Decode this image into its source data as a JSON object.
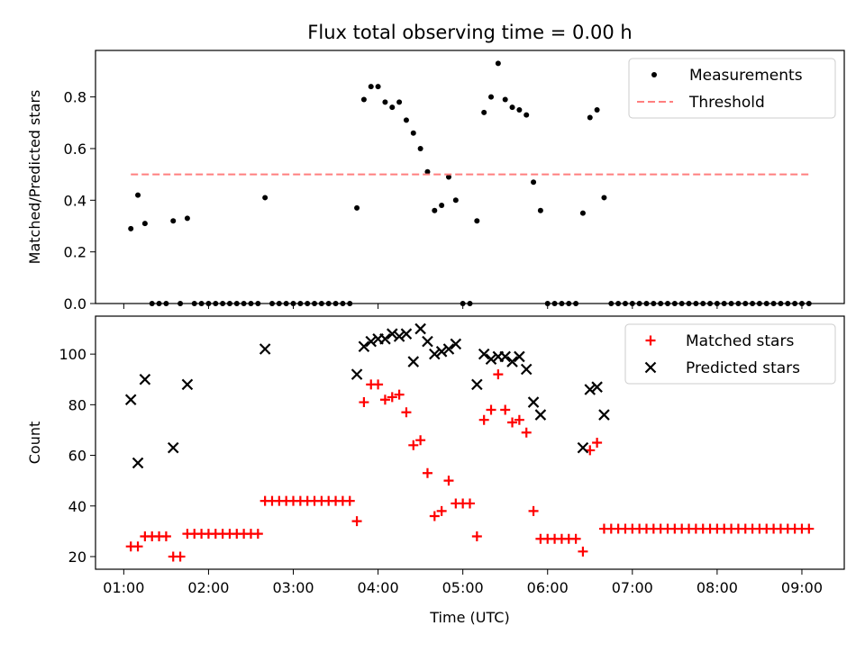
{
  "chart_data": [
    {
      "type": "scatter",
      "title": "Flux total observing time = 0.00 h",
      "xlabel": "",
      "ylabel": "Matched/Predicted stars",
      "x_is_time_hours": true,
      "xlim": [
        "00:40",
        "09:30"
      ],
      "ylim": [
        0,
        0.98
      ],
      "yticks": [
        0.0,
        0.2,
        0.4,
        0.6,
        0.8
      ],
      "ytick_labels": [
        "0.0",
        "0.2",
        "0.4",
        "0.6",
        "0.8"
      ],
      "legend": {
        "position": "top-right",
        "entries": [
          "Measurements",
          "Threshold"
        ]
      },
      "series": [
        {
          "name": "Measurements",
          "marker": "dot",
          "color": "#000000",
          "points": [
            [
              "01:05",
              0.29
            ],
            [
              "01:10",
              0.42
            ],
            [
              "01:15",
              0.31
            ],
            [
              "01:20",
              0.0
            ],
            [
              "01:25",
              0.0
            ],
            [
              "01:30",
              0.0
            ],
            [
              "01:35",
              0.32
            ],
            [
              "01:40",
              0.0
            ],
            [
              "01:45",
              0.33
            ],
            [
              "01:50",
              0.0
            ],
            [
              "01:55",
              0.0
            ],
            [
              "02:00",
              0.0
            ],
            [
              "02:05",
              0.0
            ],
            [
              "02:10",
              0.0
            ],
            [
              "02:15",
              0.0
            ],
            [
              "02:20",
              0.0
            ],
            [
              "02:25",
              0.0
            ],
            [
              "02:30",
              0.0
            ],
            [
              "02:35",
              0.0
            ],
            [
              "02:40",
              0.41
            ],
            [
              "02:45",
              0.0
            ],
            [
              "02:50",
              0.0
            ],
            [
              "02:55",
              0.0
            ],
            [
              "03:00",
              0.0
            ],
            [
              "03:05",
              0.0
            ],
            [
              "03:10",
              0.0
            ],
            [
              "03:15",
              0.0
            ],
            [
              "03:20",
              0.0
            ],
            [
              "03:25",
              0.0
            ],
            [
              "03:30",
              0.0
            ],
            [
              "03:35",
              0.0
            ],
            [
              "03:40",
              0.0
            ],
            [
              "03:45",
              0.37
            ],
            [
              "03:50",
              0.79
            ],
            [
              "03:55",
              0.84
            ],
            [
              "04:00",
              0.84
            ],
            [
              "04:05",
              0.78
            ],
            [
              "04:10",
              0.76
            ],
            [
              "04:15",
              0.78
            ],
            [
              "04:20",
              0.71
            ],
            [
              "04:25",
              0.66
            ],
            [
              "04:30",
              0.6
            ],
            [
              "04:35",
              0.51
            ],
            [
              "04:40",
              0.36
            ],
            [
              "04:45",
              0.38
            ],
            [
              "04:50",
              0.49
            ],
            [
              "04:55",
              0.4
            ],
            [
              "05:00",
              0.0
            ],
            [
              "05:05",
              0.0
            ],
            [
              "05:10",
              0.32
            ],
            [
              "05:15",
              0.74
            ],
            [
              "05:20",
              0.8
            ],
            [
              "05:25",
              0.93
            ],
            [
              "05:30",
              0.79
            ],
            [
              "05:35",
              0.76
            ],
            [
              "05:40",
              0.75
            ],
            [
              "05:45",
              0.73
            ],
            [
              "05:50",
              0.47
            ],
            [
              "05:55",
              0.36
            ],
            [
              "06:00",
              0.0
            ],
            [
              "06:05",
              0.0
            ],
            [
              "06:10",
              0.0
            ],
            [
              "06:15",
              0.0
            ],
            [
              "06:20",
              0.0
            ],
            [
              "06:25",
              0.35
            ],
            [
              "06:30",
              0.72
            ],
            [
              "06:35",
              0.75
            ],
            [
              "06:40",
              0.41
            ],
            [
              "06:45",
              0.0
            ],
            [
              "06:50",
              0.0
            ],
            [
              "06:55",
              0.0
            ],
            [
              "07:00",
              0.0
            ],
            [
              "07:05",
              0.0
            ],
            [
              "07:10",
              0.0
            ],
            [
              "07:15",
              0.0
            ],
            [
              "07:20",
              0.0
            ],
            [
              "07:25",
              0.0
            ],
            [
              "07:30",
              0.0
            ],
            [
              "07:35",
              0.0
            ],
            [
              "07:40",
              0.0
            ],
            [
              "07:45",
              0.0
            ],
            [
              "07:50",
              0.0
            ],
            [
              "07:55",
              0.0
            ],
            [
              "08:00",
              0.0
            ],
            [
              "08:05",
              0.0
            ],
            [
              "08:10",
              0.0
            ],
            [
              "08:15",
              0.0
            ],
            [
              "08:20",
              0.0
            ],
            [
              "08:25",
              0.0
            ],
            [
              "08:30",
              0.0
            ],
            [
              "08:35",
              0.0
            ],
            [
              "08:40",
              0.0
            ],
            [
              "08:45",
              0.0
            ],
            [
              "08:50",
              0.0
            ],
            [
              "08:55",
              0.0
            ],
            [
              "09:00",
              0.0
            ],
            [
              "09:05",
              0.0
            ]
          ]
        },
        {
          "name": "Threshold",
          "type": "line",
          "style": "dashed",
          "color": "#ff7f7f",
          "x": [
            "01:05",
            "09:05"
          ],
          "y": [
            0.5,
            0.5
          ]
        }
      ]
    },
    {
      "type": "scatter",
      "title": "",
      "xlabel": "Time (UTC)",
      "ylabel": "Count",
      "x_is_time_hours": true,
      "xlim": [
        "00:40",
        "09:30"
      ],
      "ylim": [
        15,
        115
      ],
      "yticks": [
        20,
        40,
        60,
        80,
        100
      ],
      "ytick_labels": [
        "20",
        "40",
        "60",
        "80",
        "100"
      ],
      "xticks": [
        "01:00",
        "02:00",
        "03:00",
        "04:00",
        "05:00",
        "06:00",
        "07:00",
        "08:00",
        "09:00"
      ],
      "xtick_labels": [
        "01:00",
        "02:00",
        "03:00",
        "04:00",
        "05:00",
        "06:00",
        "07:00",
        "08:00",
        "09:00"
      ],
      "legend": {
        "position": "top-right",
        "entries": [
          "Matched stars",
          "Predicted stars"
        ]
      },
      "series": [
        {
          "name": "Matched stars",
          "marker": "plus",
          "color": "#ff0000",
          "points": [
            [
              "01:05",
              24
            ],
            [
              "01:10",
              24
            ],
            [
              "01:15",
              28
            ],
            [
              "01:20",
              28
            ],
            [
              "01:25",
              28
            ],
            [
              "01:30",
              28
            ],
            [
              "01:35",
              20
            ],
            [
              "01:40",
              20
            ],
            [
              "01:45",
              29
            ],
            [
              "01:50",
              29
            ],
            [
              "01:55",
              29
            ],
            [
              "02:00",
              29
            ],
            [
              "02:05",
              29
            ],
            [
              "02:10",
              29
            ],
            [
              "02:15",
              29
            ],
            [
              "02:20",
              29
            ],
            [
              "02:25",
              29
            ],
            [
              "02:30",
              29
            ],
            [
              "02:35",
              29
            ],
            [
              "02:40",
              42
            ],
            [
              "02:45",
              42
            ],
            [
              "02:50",
              42
            ],
            [
              "02:55",
              42
            ],
            [
              "03:00",
              42
            ],
            [
              "03:05",
              42
            ],
            [
              "03:10",
              42
            ],
            [
              "03:15",
              42
            ],
            [
              "03:20",
              42
            ],
            [
              "03:25",
              42
            ],
            [
              "03:30",
              42
            ],
            [
              "03:35",
              42
            ],
            [
              "03:40",
              42
            ],
            [
              "03:45",
              34
            ],
            [
              "03:50",
              81
            ],
            [
              "03:55",
              88
            ],
            [
              "04:00",
              88
            ],
            [
              "04:05",
              82
            ],
            [
              "04:10",
              83
            ],
            [
              "04:15",
              84
            ],
            [
              "04:20",
              77
            ],
            [
              "04:25",
              64
            ],
            [
              "04:30",
              66
            ],
            [
              "04:35",
              53
            ],
            [
              "04:40",
              36
            ],
            [
              "04:45",
              38
            ],
            [
              "04:50",
              50
            ],
            [
              "04:55",
              41
            ],
            [
              "05:00",
              41
            ],
            [
              "05:05",
              41
            ],
            [
              "05:10",
              28
            ],
            [
              "05:15",
              74
            ],
            [
              "05:20",
              78
            ],
            [
              "05:25",
              92
            ],
            [
              "05:30",
              78
            ],
            [
              "05:35",
              73
            ],
            [
              "05:40",
              74
            ],
            [
              "05:45",
              69
            ],
            [
              "05:50",
              38
            ],
            [
              "05:55",
              27
            ],
            [
              "06:00",
              27
            ],
            [
              "06:05",
              27
            ],
            [
              "06:10",
              27
            ],
            [
              "06:15",
              27
            ],
            [
              "06:20",
              27
            ],
            [
              "06:25",
              22
            ],
            [
              "06:30",
              62
            ],
            [
              "06:35",
              65
            ],
            [
              "06:40",
              31
            ],
            [
              "06:45",
              31
            ],
            [
              "06:50",
              31
            ],
            [
              "06:55",
              31
            ],
            [
              "07:00",
              31
            ],
            [
              "07:05",
              31
            ],
            [
              "07:10",
              31
            ],
            [
              "07:15",
              31
            ],
            [
              "07:20",
              31
            ],
            [
              "07:25",
              31
            ],
            [
              "07:30",
              31
            ],
            [
              "07:35",
              31
            ],
            [
              "07:40",
              31
            ],
            [
              "07:45",
              31
            ],
            [
              "07:50",
              31
            ],
            [
              "07:55",
              31
            ],
            [
              "08:00",
              31
            ],
            [
              "08:05",
              31
            ],
            [
              "08:10",
              31
            ],
            [
              "08:15",
              31
            ],
            [
              "08:20",
              31
            ],
            [
              "08:25",
              31
            ],
            [
              "08:30",
              31
            ],
            [
              "08:35",
              31
            ],
            [
              "08:40",
              31
            ],
            [
              "08:45",
              31
            ],
            [
              "08:50",
              31
            ],
            [
              "08:55",
              31
            ],
            [
              "09:00",
              31
            ],
            [
              "09:05",
              31
            ]
          ]
        },
        {
          "name": "Predicted stars",
          "marker": "x",
          "color": "#000000",
          "points": [
            [
              "01:05",
              82
            ],
            [
              "01:10",
              57
            ],
            [
              "01:15",
              90
            ],
            [
              "01:35",
              63
            ],
            [
              "01:45",
              88
            ],
            [
              "02:40",
              102
            ],
            [
              "03:45",
              92
            ],
            [
              "03:50",
              103
            ],
            [
              "03:55",
              105
            ],
            [
              "04:00",
              106
            ],
            [
              "04:05",
              106
            ],
            [
              "04:10",
              108
            ],
            [
              "04:15",
              107
            ],
            [
              "04:20",
              108
            ],
            [
              "04:25",
              97
            ],
            [
              "04:30",
              110
            ],
            [
              "04:35",
              105
            ],
            [
              "04:40",
              100
            ],
            [
              "04:45",
              101
            ],
            [
              "04:50",
              102
            ],
            [
              "04:55",
              104
            ],
            [
              "05:10",
              88
            ],
            [
              "05:15",
              100
            ],
            [
              "05:20",
              98
            ],
            [
              "05:25",
              99
            ],
            [
              "05:30",
              99
            ],
            [
              "05:35",
              97
            ],
            [
              "05:40",
              99
            ],
            [
              "05:45",
              94
            ],
            [
              "05:50",
              81
            ],
            [
              "05:55",
              76
            ],
            [
              "06:25",
              63
            ],
            [
              "06:30",
              86
            ],
            [
              "06:35",
              87
            ],
            [
              "06:40",
              76
            ]
          ]
        }
      ]
    }
  ]
}
